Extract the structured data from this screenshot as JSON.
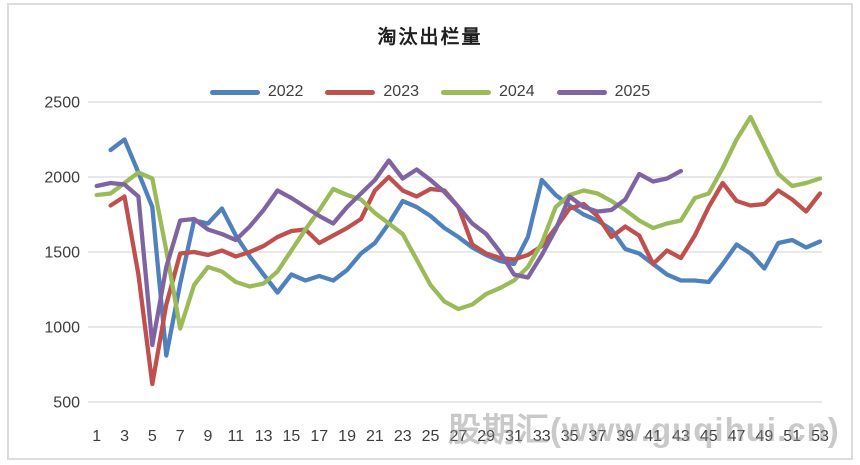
{
  "watermark": "股期汇(www.guqihui.cn)",
  "chart_data": {
    "type": "line",
    "title": "淘汰出栏量",
    "xlabel": "",
    "ylabel": "",
    "ylim": [
      500,
      2500
    ],
    "y_ticks": [
      500,
      1000,
      1500,
      2000,
      2500
    ],
    "x_ticks": [
      1,
      3,
      5,
      7,
      9,
      11,
      13,
      15,
      17,
      19,
      21,
      23,
      25,
      27,
      29,
      31,
      33,
      35,
      37,
      39,
      41,
      43,
      45,
      47,
      49,
      51,
      53
    ],
    "weeks": 53,
    "grid": true,
    "legend_position": "top",
    "gridline_color": "#d9d9d9",
    "series": [
      {
        "name": "2022",
        "color": "#4F81BD",
        "values": [
          null,
          2180,
          2250,
          2030,
          1800,
          810,
          1290,
          1710,
          1690,
          1790,
          1610,
          1470,
          1350,
          1230,
          1350,
          1310,
          1340,
          1310,
          1380,
          1490,
          1560,
          1690,
          1840,
          1800,
          1740,
          1660,
          1600,
          1530,
          1480,
          1440,
          1420,
          1600,
          1980,
          1880,
          1810,
          1750,
          1710,
          1650,
          1520,
          1490,
          1420,
          1350,
          1310,
          1310,
          1300,
          1420,
          1550,
          1490,
          1390,
          1560,
          1580,
          1530,
          1570
        ]
      },
      {
        "name": "2023",
        "color": "#C0504D",
        "values": [
          null,
          1810,
          1870,
          1350,
          620,
          1150,
          1490,
          1500,
          1480,
          1510,
          1470,
          1500,
          1540,
          1600,
          1640,
          1650,
          1560,
          1610,
          1660,
          1720,
          1910,
          2000,
          1910,
          1870,
          1920,
          1910,
          1800,
          1550,
          1490,
          1460,
          1450,
          1480,
          1540,
          1660,
          1790,
          1820,
          1740,
          1600,
          1670,
          1610,
          1420,
          1510,
          1460,
          1610,
          1800,
          1960,
          1840,
          1810,
          1820,
          1910,
          1850,
          1770,
          1890
        ]
      },
      {
        "name": "2024",
        "color": "#9BBB59",
        "values": [
          1880,
          1890,
          1960,
          2030,
          1990,
          1510,
          990,
          1280,
          1400,
          1370,
          1300,
          1270,
          1290,
          1370,
          1510,
          1650,
          1780,
          1920,
          1880,
          1850,
          1760,
          1690,
          1620,
          1450,
          1280,
          1170,
          1120,
          1150,
          1220,
          1260,
          1310,
          1400,
          1560,
          1800,
          1880,
          1910,
          1890,
          1840,
          1780,
          1710,
          1660,
          1690,
          1710,
          1860,
          1890,
          2060,
          2250,
          2400,
          2210,
          2020,
          1940,
          1960,
          1990
        ]
      },
      {
        "name": "2025",
        "color": "#8064A2",
        "values": [
          1940,
          1960,
          1950,
          1870,
          880,
          1400,
          1710,
          1720,
          1650,
          1620,
          1580,
          1670,
          1780,
          1910,
          1860,
          1800,
          1740,
          1690,
          1800,
          1890,
          1980,
          2110,
          1990,
          2050,
          1980,
          1900,
          1800,
          1690,
          1620,
          1500,
          1350,
          1330,
          1480,
          1650,
          1870,
          1800,
          1770,
          1780,
          1850,
          2020,
          1970,
          1990,
          2040,
          null,
          null,
          null,
          null,
          null,
          null,
          null,
          null,
          null,
          null
        ]
      }
    ]
  }
}
